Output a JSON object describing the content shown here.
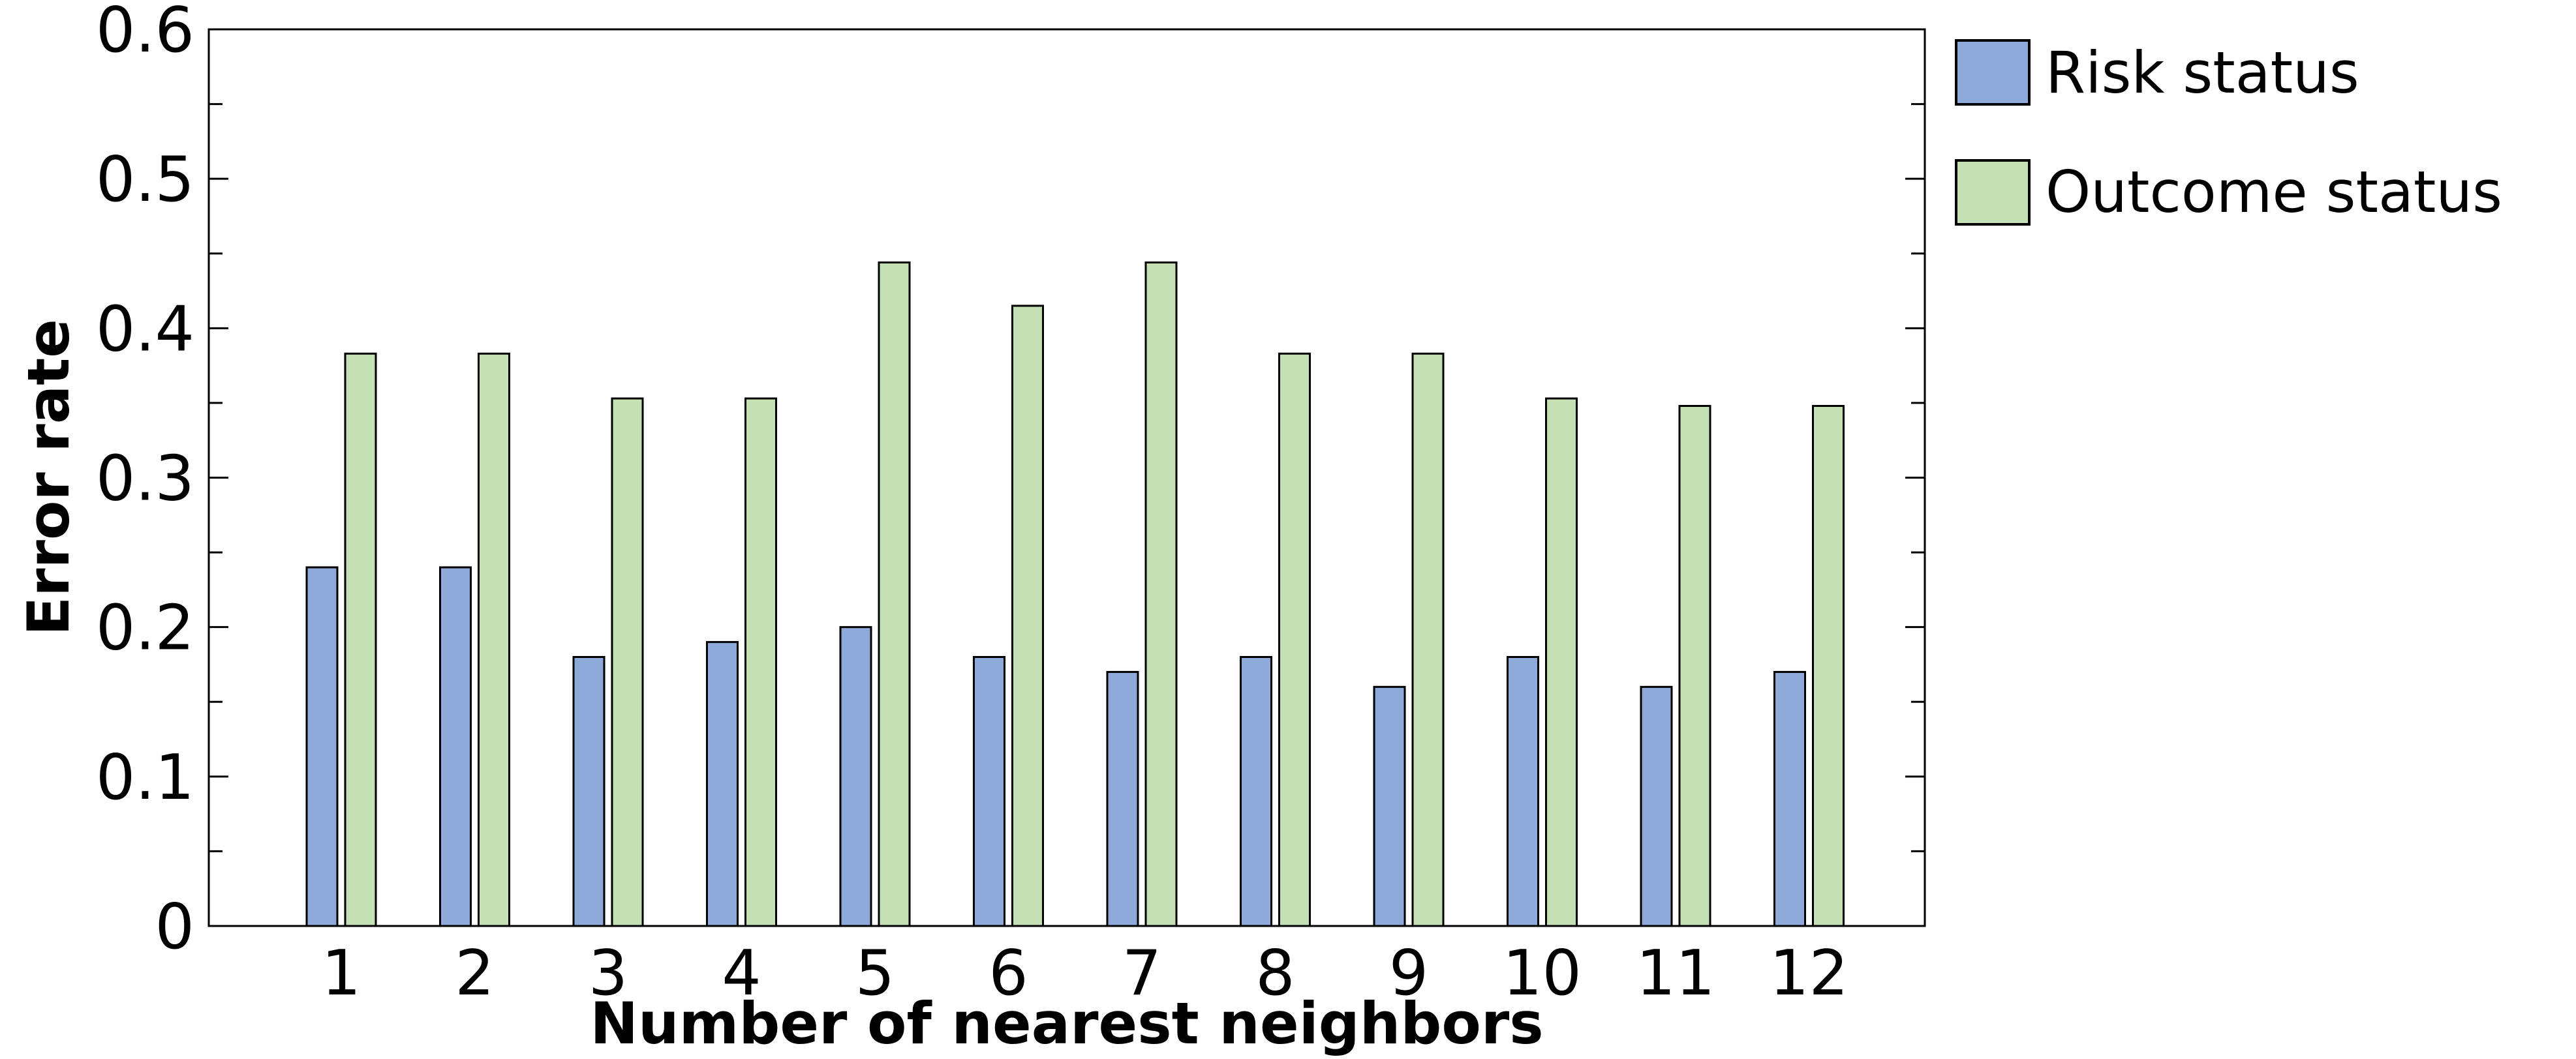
{
  "chart_data": {
    "type": "bar",
    "categories": [
      "1",
      "2",
      "3",
      "4",
      "5",
      "6",
      "7",
      "8",
      "9",
      "10",
      "11",
      "12"
    ],
    "series": [
      {
        "name": "Risk status",
        "color": "#8eaadb",
        "values": [
          0.24,
          0.24,
          0.18,
          0.19,
          0.2,
          0.18,
          0.17,
          0.18,
          0.16,
          0.18,
          0.16,
          0.17
        ]
      },
      {
        "name": "Outcome status",
        "color": "#c5e0b4",
        "values": [
          0.383,
          0.383,
          0.353,
          0.353,
          0.444,
          0.415,
          0.444,
          0.383,
          0.383,
          0.353,
          0.348,
          0.348
        ]
      }
    ],
    "title": "",
    "xlabel": "Number of nearest neighbors",
    "ylabel": "Error rate",
    "ylim": [
      0,
      0.6
    ],
    "yticks": [
      "0",
      "0.1",
      "0.2",
      "0.3",
      "0.4",
      "0.5",
      "0.6"
    ],
    "grid": false,
    "legend_position": "outside-right"
  }
}
